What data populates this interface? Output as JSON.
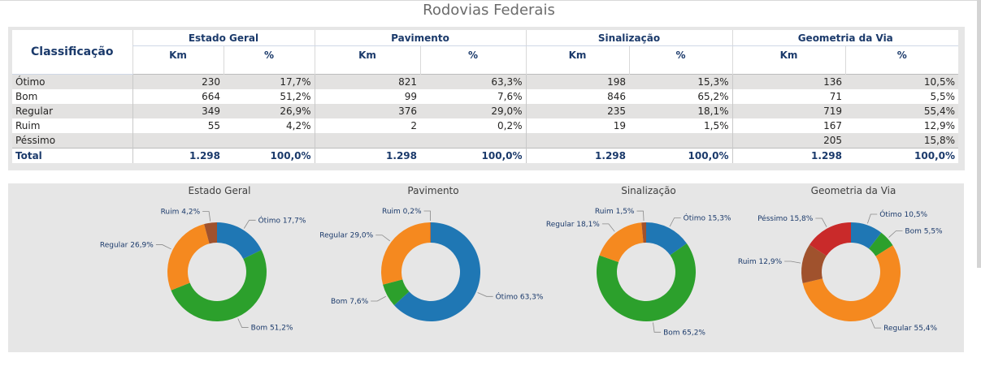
{
  "title": "Rodovias Federais",
  "table": {
    "row_header": "Classificação",
    "groups": [
      "Estado Geral",
      "Pavimento",
      "Sinalização",
      "Geometria da Via"
    ],
    "sub_km": "Km",
    "sub_pct": "%",
    "rows": [
      {
        "label": "Ótimo",
        "cells": [
          "230",
          "17,7%",
          "821",
          "63,3%",
          "198",
          "15,3%",
          "136",
          "10,5%"
        ]
      },
      {
        "label": "Bom",
        "cells": [
          "664",
          "51,2%",
          "99",
          "7,6%",
          "846",
          "65,2%",
          "71",
          "5,5%"
        ]
      },
      {
        "label": "Regular",
        "cells": [
          "349",
          "26,9%",
          "376",
          "29,0%",
          "235",
          "18,1%",
          "719",
          "55,4%"
        ]
      },
      {
        "label": "Ruim",
        "cells": [
          "55",
          "4,2%",
          "2",
          "0,2%",
          "19",
          "1,5%",
          "167",
          "12,9%"
        ]
      },
      {
        "label": "Péssimo",
        "cells": [
          "",
          "",
          "",
          "",
          "",
          "",
          "205",
          "15,8%"
        ]
      }
    ],
    "total": {
      "label": "Total",
      "cells": [
        "1.298",
        "100,0%",
        "1.298",
        "100,0%",
        "1.298",
        "100,0%",
        "1.298",
        "100,0%"
      ]
    }
  },
  "colors": {
    "Ótimo": "#1f77b4",
    "Bom": "#2ca02c",
    "Regular": "#f5891f",
    "Ruim": "#a0522d",
    "Péssimo": "#c92a2a"
  },
  "chart_data": [
    {
      "type": "pie",
      "title": "Estado Geral",
      "slices": [
        {
          "label": "Ótimo",
          "value": 17.7,
          "text": "Ótimo 17,7%"
        },
        {
          "label": "Bom",
          "value": 51.2,
          "text": "Bom 51,2%"
        },
        {
          "label": "Regular",
          "value": 26.9,
          "text": "Regular 26,9%"
        },
        {
          "label": "Ruim",
          "value": 4.2,
          "text": "Ruim 4,2%"
        }
      ]
    },
    {
      "type": "pie",
      "title": "Pavimento",
      "slices": [
        {
          "label": "Ótimo",
          "value": 63.3,
          "text": "Ótimo 63,3%"
        },
        {
          "label": "Bom",
          "value": 7.6,
          "text": "Bom 7,6%"
        },
        {
          "label": "Regular",
          "value": 29.0,
          "text": "Regular 29,0%"
        },
        {
          "label": "Ruim",
          "value": 0.2,
          "text": "Ruim 0,2%"
        }
      ]
    },
    {
      "type": "pie",
      "title": "Sinalização",
      "slices": [
        {
          "label": "Ótimo",
          "value": 15.3,
          "text": "Ótimo 15,3%"
        },
        {
          "label": "Bom",
          "value": 65.2,
          "text": "Bom 65,2%"
        },
        {
          "label": "Regular",
          "value": 18.1,
          "text": "Regular 18,1%"
        },
        {
          "label": "Ruim",
          "value": 1.5,
          "text": "Ruim 1,5%"
        }
      ]
    },
    {
      "type": "pie",
      "title": "Geometria da Via",
      "slices": [
        {
          "label": "Ótimo",
          "value": 10.5,
          "text": "Ótimo 10,5%"
        },
        {
          "label": "Bom",
          "value": 5.5,
          "text": "Bom 5,5%"
        },
        {
          "label": "Regular",
          "value": 55.4,
          "text": "Regular 55,4%"
        },
        {
          "label": "Ruim",
          "value": 12.9,
          "text": "Ruim 12,9%"
        },
        {
          "label": "Péssimo",
          "value": 15.8,
          "text": "Péssimo 15,8%"
        }
      ]
    }
  ]
}
